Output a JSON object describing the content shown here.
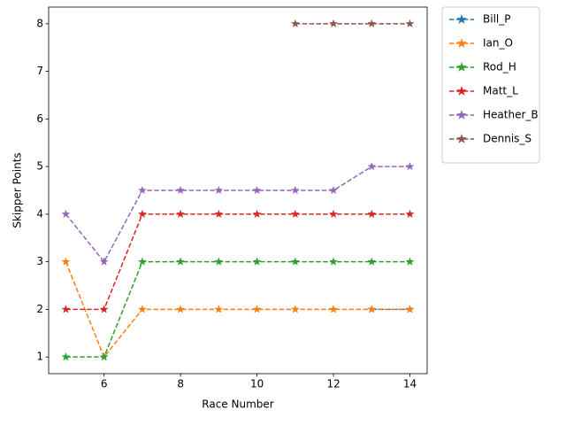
{
  "chart_data": {
    "type": "line",
    "x_label": "Race Number",
    "y_label": "Skipper Points",
    "x": [
      5,
      6,
      7,
      8,
      9,
      10,
      11,
      12,
      13,
      14
    ],
    "xlim": [
      4.55,
      14.45
    ],
    "xticks": [
      6,
      8,
      10,
      12,
      14
    ],
    "ylim": [
      0.65,
      8.35
    ],
    "yticks": [
      1,
      2,
      3,
      4,
      5,
      6,
      7,
      8
    ],
    "grid": false,
    "legend": "outside upper right",
    "marker": "star",
    "line_style": "dashed",
    "series": [
      {
        "name": "Bill_P",
        "color": "#1f77b4",
        "values": [
          null,
          null,
          null,
          null,
          null,
          null,
          null,
          null,
          2,
          2
        ]
      },
      {
        "name": "Ian_O",
        "color": "#ff7f0e",
        "values": [
          3,
          1,
          2,
          2,
          2,
          2,
          2,
          2,
          2,
          2
        ]
      },
      {
        "name": "Rod_H",
        "color": "#2ca02c",
        "values": [
          1,
          1,
          3,
          3,
          3,
          3,
          3,
          3,
          3,
          3
        ]
      },
      {
        "name": "Matt_L",
        "color": "#d62728",
        "values": [
          2,
          2,
          4,
          4,
          4,
          4,
          4,
          4,
          4,
          4
        ]
      },
      {
        "name": "Heather_B",
        "color": "#9467bd",
        "values": [
          4,
          3,
          4.5,
          4.5,
          4.5,
          4.5,
          4.5,
          4.5,
          5,
          5
        ]
      },
      {
        "name": "Dennis_S",
        "color": "#8c564b",
        "values": [
          null,
          null,
          null,
          null,
          null,
          null,
          8,
          8,
          8,
          8
        ]
      }
    ]
  }
}
